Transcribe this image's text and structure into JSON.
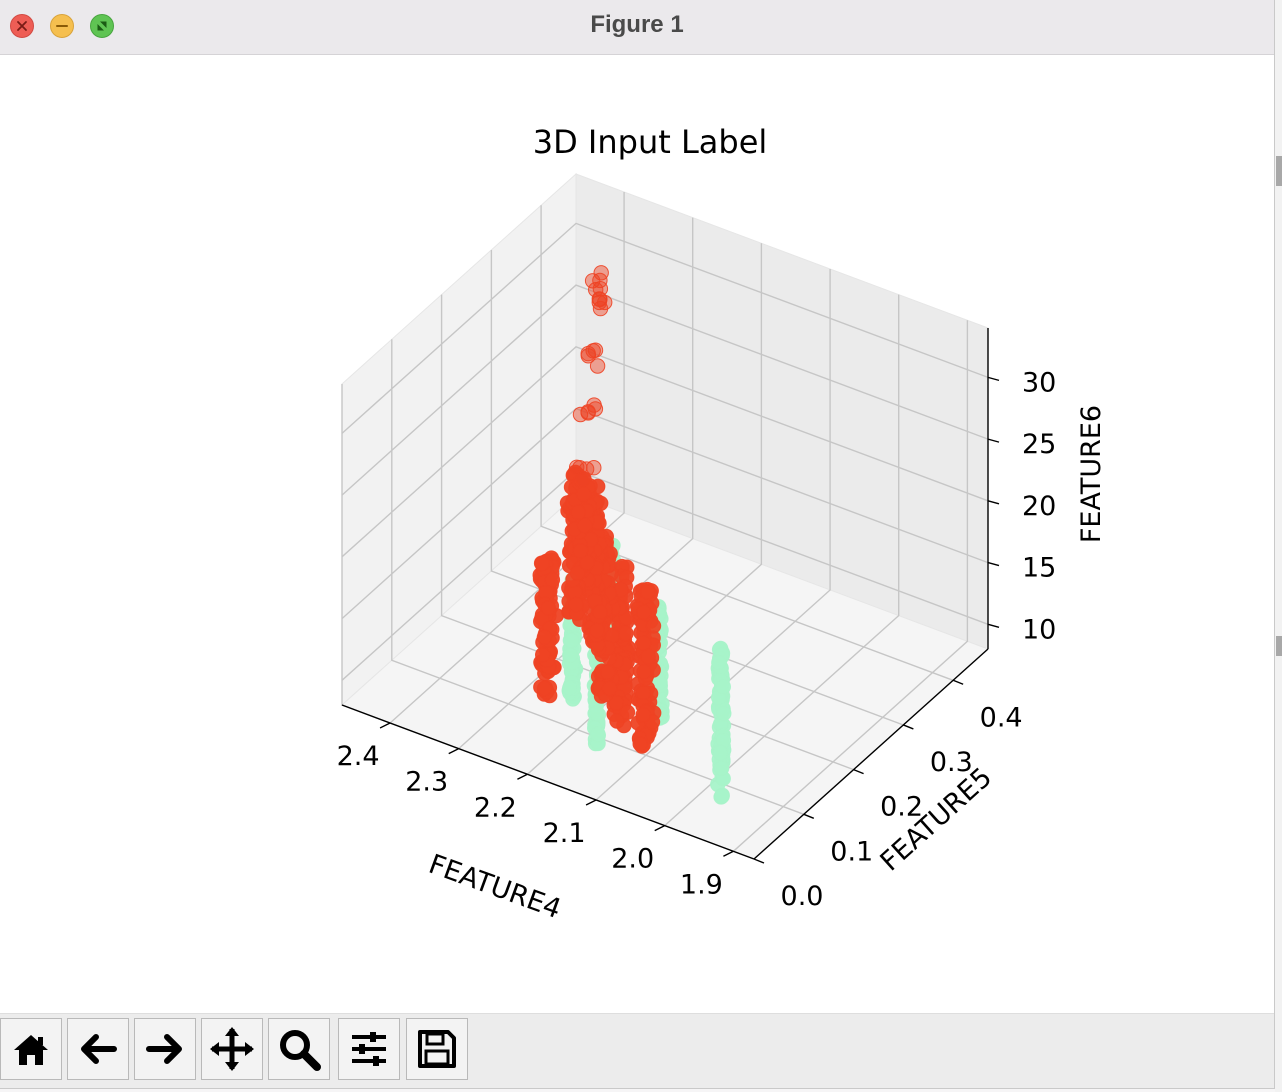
{
  "window": {
    "title": "Figure 1"
  },
  "toolbar": {
    "buttons": [
      {
        "name": "home-icon",
        "tooltip": "Home"
      },
      {
        "name": "back-arrow-icon",
        "tooltip": "Back"
      },
      {
        "name": "forward-arrow-icon",
        "tooltip": "Forward"
      },
      {
        "name": "pan-move-icon",
        "tooltip": "Pan"
      },
      {
        "name": "zoom-magnifier-icon",
        "tooltip": "Zoom"
      },
      {
        "name": "configure-subplots-icon",
        "tooltip": "Subplots"
      },
      {
        "name": "save-floppy-icon",
        "tooltip": "Save"
      }
    ]
  },
  "chart_data": {
    "type": "scatter",
    "projection": "3d",
    "title": "3D Input Label",
    "xlabel": "FEATURE4",
    "ylabel": "FEATURE5",
    "zlabel": "FEATURE6",
    "xticks": [
      "1.9",
      "2.0",
      "2.1",
      "2.2",
      "2.3",
      "2.4"
    ],
    "yticks": [
      "0.0",
      "0.1",
      "0.2",
      "0.3",
      "0.4"
    ],
    "zticks": [
      "10",
      "15",
      "20",
      "25",
      "30"
    ],
    "xlim": [
      1.87,
      2.47
    ],
    "ylim": [
      0.0,
      0.47
    ],
    "zlim": [
      8.0,
      34.0
    ],
    "grid": true,
    "series": [
      {
        "color": "#a7f3c9",
        "clusters": [
          {
            "x": 1.94,
            "y": 0.03,
            "z": [
              10.5,
              22.5
            ]
          },
          {
            "x": 2.03,
            "y": 0.03,
            "z": [
              15.0,
              24.0
            ]
          },
          {
            "x": 2.12,
            "y": 0.03,
            "z": [
              11.0,
              22.5
            ]
          },
          {
            "x": 2.2,
            "y": 0.09,
            "z": [
              11.0,
              21.0
            ]
          },
          {
            "x": 2.23,
            "y": 0.21,
            "z": [
              12.0,
              18.5
            ]
          }
        ]
      },
      {
        "color": "#ee4324",
        "clusters": [
          {
            "x": 2.05,
            "y": 0.03,
            "z": [
              12.5,
              25.5
            ]
          },
          {
            "x": 2.1,
            "y": 0.05,
            "z": [
              12.5,
              25.0
            ]
          },
          {
            "x": 2.14,
            "y": 0.07,
            "z": [
              13.0,
              26.0
            ]
          },
          {
            "x": 2.19,
            "y": 0.12,
            "z": [
              14.5,
              27.5
            ]
          },
          {
            "x": 2.23,
            "y": 0.14,
            "z": [
              15.0,
              27.0
            ]
          },
          {
            "x": 2.25,
            "y": 0.11,
            "z": [
              8.5,
              20.5
            ]
          },
          {
            "x": 2.3,
            "y": 0.25,
            "z": [
              14.0,
              20.5
            ]
          }
        ],
        "tail": [
          [
            2.26,
            0.2,
            24.0
          ],
          [
            2.28,
            0.23,
            27.0
          ],
          [
            2.3,
            0.27,
            30.0
          ],
          [
            2.32,
            0.31,
            32.5
          ],
          [
            2.33,
            0.33,
            33.5
          ]
        ]
      }
    ]
  }
}
